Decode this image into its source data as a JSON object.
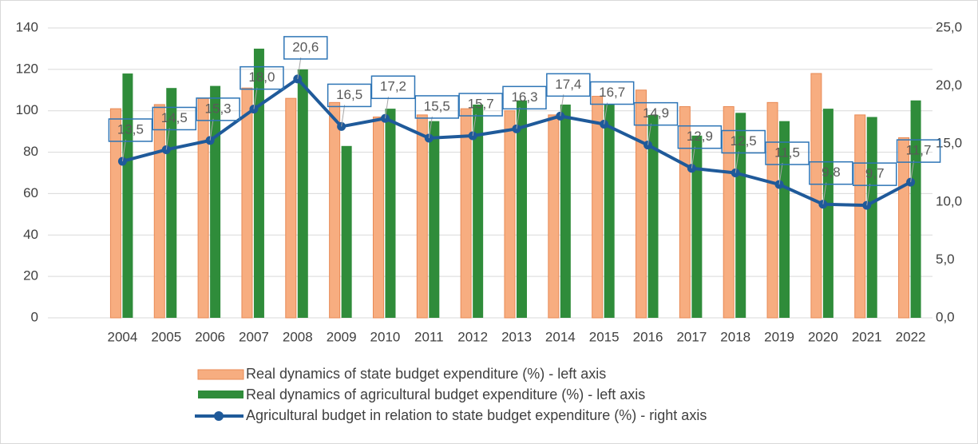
{
  "chart_data": {
    "type": "bar",
    "categories": [
      "2004",
      "2005",
      "2006",
      "2007",
      "2008",
      "2009",
      "2010",
      "2011",
      "2012",
      "2013",
      "2014",
      "2015",
      "2016",
      "2017",
      "2018",
      "2019",
      "2020",
      "2021",
      "2022"
    ],
    "series": [
      {
        "name": "Real dynamics of state budget expenditure (%) - left axis",
        "color": "#f7ad80",
        "axis": "y",
        "values": [
          101,
          103,
          106,
          111,
          106,
          104,
          97,
          98,
          101,
          100,
          98,
          107,
          110,
          102,
          102,
          104,
          118,
          98,
          87
        ]
      },
      {
        "name": "Real dynamics of agricultural budget expenditure (%) - left axis",
        "color": "#2f8c3a",
        "axis": "y",
        "values": [
          118,
          111,
          112,
          130,
          120,
          83,
          101,
          95,
          103,
          105,
          103,
          103,
          98,
          88,
          99,
          95,
          101,
          97,
          105
        ]
      },
      {
        "name": "Agricultural budget in relation to state budget expenditure (%) - right axis",
        "color": "#1f5a9a",
        "axis": "y2",
        "type": "line",
        "values": [
          13.5,
          14.5,
          15.3,
          18.0,
          20.6,
          16.5,
          17.2,
          15.5,
          15.7,
          16.3,
          17.4,
          16.7,
          14.9,
          12.9,
          12.5,
          11.5,
          9.8,
          9.7,
          11.7
        ],
        "value_labels": [
          "13,5",
          "14,5",
          "15,3",
          "18,0",
          "20,6",
          "16,5",
          "17,2",
          "15,5",
          "15,7",
          "16,3",
          "17,4",
          "16,7",
          "14,9",
          "12,9",
          "12,5",
          "11,5",
          "9,8",
          "9,7",
          "11,7"
        ]
      }
    ],
    "ylim": [
      0,
      140
    ],
    "yticks": [
      0,
      20,
      40,
      60,
      80,
      100,
      120,
      140
    ],
    "y2lim": [
      0,
      25
    ],
    "y2ticks": [
      {
        "value": 0,
        "label": "0,0"
      },
      {
        "value": 5,
        "label": "5,0"
      },
      {
        "value": 10,
        "label": "10,0"
      },
      {
        "value": 15,
        "label": "15,0"
      },
      {
        "value": 20,
        "label": "20,0"
      },
      {
        "value": 25,
        "label": "25,0"
      }
    ],
    "grid": true,
    "legend": "bottom"
  }
}
